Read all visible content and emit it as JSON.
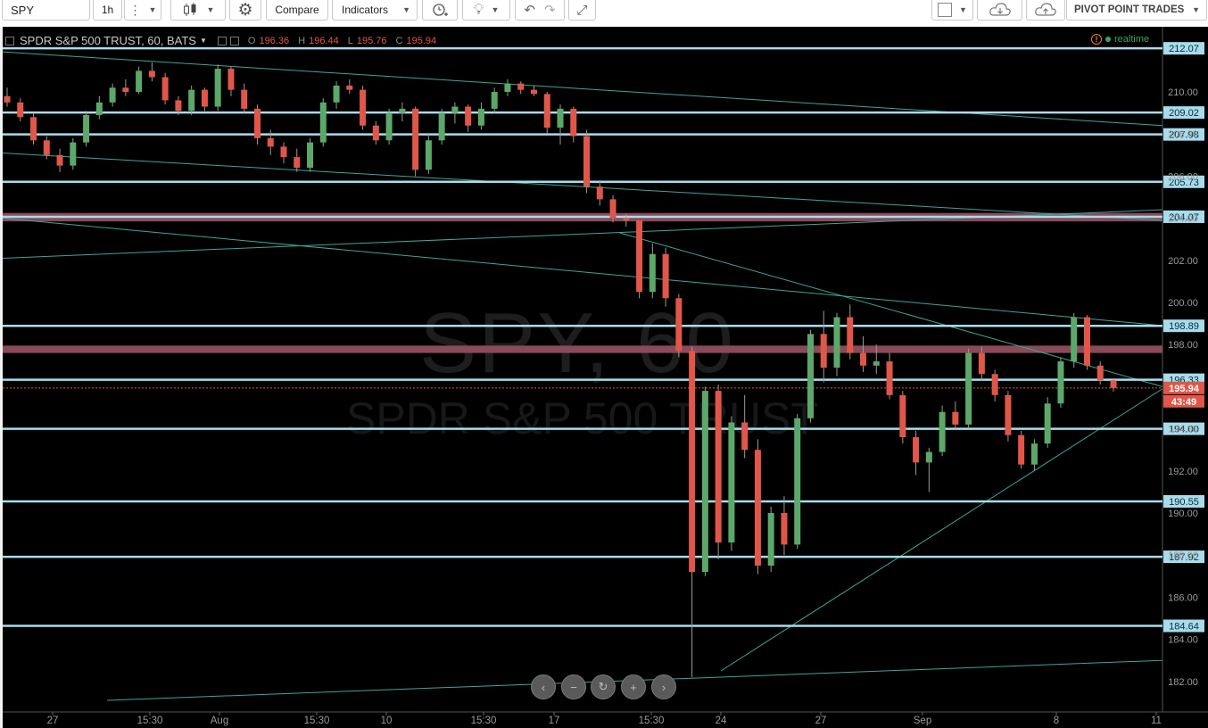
{
  "toolbar": {
    "symbol": "SPY",
    "interval": "1h",
    "compare_label": "Compare",
    "indicators_label": "Indicators",
    "brand_label": "PIVOT POINT TRADES"
  },
  "legend": {
    "title": "SPDR S&P 500 TRUST, 60, BATS",
    "open_key": "O",
    "open": "196.36",
    "high_key": "H",
    "high": "196.44",
    "low_key": "L",
    "low": "195.76",
    "close_key": "C",
    "close": "195.94"
  },
  "realtime_label": "realtime",
  "watermark": {
    "symbol": "SPY, 60",
    "name": "SPDR S&P 500 TRUST"
  },
  "colors": {
    "up": "#5ca86a",
    "down": "#e0574a",
    "level_line": "#a8dcec",
    "trend_line": "#3da597",
    "zone": "#8a4a5a",
    "price_tag": "#e0574a"
  },
  "price_axis": {
    "ticks": [
      "210.00",
      "208.00",
      "206.00",
      "204.00",
      "202.00",
      "200.00",
      "198.00",
      "196.00",
      "194.00",
      "192.00",
      "190.00",
      "188.00",
      "186.00",
      "184.00",
      "182.00"
    ],
    "current_price": "195.94",
    "countdown": "43:49"
  },
  "time_axis": {
    "labels": [
      "27",
      "15:30",
      "Aug",
      "15:30",
      "10",
      "15:30",
      "17",
      "15:30",
      "24",
      "27",
      "Sep",
      "8",
      "11"
    ]
  },
  "chart_data": {
    "type": "candlestick",
    "symbol": "SPY",
    "interval": "60",
    "ylim": [
      181,
      212.5
    ],
    "levels": [
      212.07,
      209.02,
      207.98,
      205.73,
      204.07,
      198.89,
      196.33,
      194.0,
      190.55,
      187.92,
      184.64
    ],
    "zones": [
      [
        203.85,
        204.25
      ],
      [
        197.6,
        197.95
      ]
    ],
    "x_labels": [
      "27",
      "15:30",
      "Aug",
      "15:30",
      "10",
      "15:30",
      "17",
      "15:30",
      "24",
      "27",
      "Sep",
      "8",
      "11"
    ],
    "series": [
      {
        "ohlc": [
          [
            209.8,
            210.2,
            209.3,
            209.5
          ],
          [
            209.5,
            209.7,
            208.6,
            208.8
          ],
          [
            208.8,
            209.0,
            207.5,
            207.7
          ],
          [
            207.7,
            207.9,
            206.8,
            207.0
          ],
          [
            207.0,
            207.3,
            206.2,
            206.5
          ],
          [
            206.5,
            207.8,
            206.3,
            207.6
          ],
          [
            207.6,
            209.1,
            207.4,
            208.9
          ],
          [
            208.9,
            209.8,
            208.7,
            209.5
          ],
          [
            209.5,
            210.4,
            209.3,
            210.2
          ],
          [
            210.2,
            210.6,
            209.8,
            210.0
          ],
          [
            210.0,
            211.2,
            209.9,
            211.0
          ],
          [
            211.0,
            211.4,
            210.5,
            210.7
          ],
          [
            210.7,
            210.9,
            209.4,
            209.6
          ],
          [
            209.6,
            209.8,
            208.9,
            209.1
          ],
          [
            209.1,
            210.3,
            208.9,
            210.1
          ],
          [
            210.1,
            210.2,
            209.1,
            209.3
          ],
          [
            209.3,
            211.3,
            209.1,
            211.1
          ],
          [
            211.1,
            211.2,
            209.8,
            210.1
          ],
          [
            210.1,
            210.4,
            209.0,
            209.2
          ],
          [
            209.2,
            209.4,
            207.5,
            207.8
          ],
          [
            207.8,
            208.2,
            207.0,
            207.4
          ],
          [
            207.4,
            207.6,
            206.6,
            206.9
          ],
          [
            206.9,
            207.3,
            206.2,
            206.4
          ],
          [
            206.4,
            207.8,
            206.2,
            207.6
          ],
          [
            207.6,
            209.7,
            207.4,
            209.5
          ],
          [
            209.5,
            210.5,
            209.2,
            210.3
          ],
          [
            210.3,
            210.6,
            209.9,
            210.1
          ],
          [
            210.1,
            210.3,
            208.2,
            208.4
          ],
          [
            208.4,
            208.6,
            207.5,
            207.7
          ],
          [
            207.7,
            209.2,
            207.5,
            209.0
          ],
          [
            209.0,
            209.5,
            208.6,
            209.2
          ],
          [
            209.2,
            209.3,
            206.0,
            206.3
          ],
          [
            206.3,
            208.0,
            206.1,
            207.7
          ],
          [
            207.7,
            209.2,
            207.5,
            209.0
          ],
          [
            209.0,
            209.5,
            208.5,
            209.3
          ],
          [
            209.3,
            209.4,
            208.1,
            208.4
          ],
          [
            208.4,
            209.5,
            208.2,
            209.2
          ],
          [
            209.2,
            210.2,
            209.0,
            210.0
          ],
          [
            210.0,
            210.6,
            209.8,
            210.4
          ],
          [
            210.4,
            210.5,
            209.9,
            210.1
          ],
          [
            210.1,
            210.3,
            209.8,
            209.9
          ],
          [
            209.9,
            210.0,
            208.0,
            208.3
          ],
          [
            208.3,
            209.4,
            207.5,
            209.2
          ],
          [
            209.2,
            209.3,
            207.6,
            207.9
          ],
          [
            207.9,
            208.2,
            205.2,
            205.5
          ],
          [
            205.5,
            205.8,
            204.6,
            204.9
          ],
          [
            204.9,
            205.1,
            203.8,
            204.0
          ],
          [
            204.0,
            204.2,
            203.6,
            203.9
          ],
          [
            203.9,
            203.9,
            200.2,
            200.5
          ],
          [
            200.5,
            202.8,
            200.2,
            202.3
          ],
          [
            202.3,
            202.6,
            199.8,
            200.2
          ],
          [
            200.2,
            200.4,
            197.4,
            197.7
          ],
          [
            197.7,
            197.9,
            182.2,
            187.2
          ],
          [
            187.2,
            196.0,
            187.0,
            195.8
          ],
          [
            195.8,
            196.1,
            187.8,
            188.6
          ],
          [
            188.6,
            194.6,
            188.2,
            194.3
          ],
          [
            194.3,
            195.6,
            192.6,
            193.0
          ],
          [
            193.0,
            193.5,
            187.1,
            187.5
          ],
          [
            187.5,
            190.3,
            187.2,
            190.0
          ],
          [
            190.0,
            190.8,
            188.0,
            188.5
          ],
          [
            188.5,
            194.7,
            188.3,
            194.5
          ],
          [
            194.5,
            198.7,
            194.3,
            198.5
          ],
          [
            198.5,
            199.6,
            196.2,
            196.9
          ],
          [
            196.9,
            199.5,
            196.5,
            199.3
          ],
          [
            199.3,
            199.9,
            197.3,
            197.6
          ],
          [
            197.6,
            198.4,
            196.7,
            197.0
          ],
          [
            197.0,
            198.0,
            196.6,
            197.2
          ],
          [
            197.2,
            197.6,
            195.4,
            195.6
          ],
          [
            195.6,
            195.8,
            193.3,
            193.6
          ],
          [
            193.6,
            193.9,
            191.8,
            192.4
          ],
          [
            192.4,
            193.1,
            191.0,
            192.9
          ],
          [
            192.9,
            195.1,
            192.7,
            194.8
          ],
          [
            194.8,
            195.3,
            194.0,
            194.2
          ],
          [
            194.2,
            197.8,
            194.0,
            197.6
          ],
          [
            197.6,
            197.9,
            196.3,
            196.6
          ],
          [
            196.6,
            196.8,
            195.3,
            195.6
          ],
          [
            195.6,
            195.8,
            193.4,
            193.7
          ],
          [
            193.7,
            193.9,
            192.1,
            192.3
          ],
          [
            192.3,
            193.5,
            192.0,
            193.3
          ],
          [
            193.3,
            195.5,
            193.1,
            195.2
          ],
          [
            195.2,
            197.4,
            195.0,
            197.2
          ],
          [
            197.2,
            199.5,
            196.9,
            199.3
          ],
          [
            199.3,
            199.4,
            196.8,
            197.0
          ],
          [
            197.0,
            197.2,
            196.1,
            196.3
          ],
          [
            196.3,
            196.4,
            195.76,
            195.94
          ]
        ]
      }
    ]
  }
}
